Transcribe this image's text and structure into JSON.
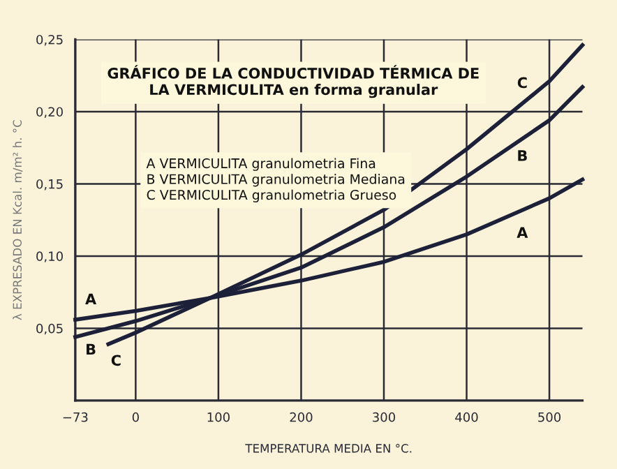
{
  "chart_data": {
    "type": "line",
    "title": "GRÁFICO DE LA CONDUCTIVIDAD TÉRMICA DE\nLA VERMICULITA en forma granular",
    "xlabel": "TEMPERATURA MEDIA EN °C.",
    "ylabel": "λ EXPRESADO EN Kcal. m/m² h. °C",
    "series": [
      {
        "name": "A",
        "color": "#1c2038",
        "x": [
          -73,
          0,
          90,
          200,
          300,
          400,
          500,
          540
        ],
        "values": [
          0.056,
          0.062,
          0.071,
          0.083,
          0.096,
          0.115,
          0.14,
          0.153
        ]
      },
      {
        "name": "B",
        "color": "#1c2038",
        "x": [
          -73,
          0,
          90,
          200,
          300,
          400,
          500,
          540
        ],
        "values": [
          0.044,
          0.055,
          0.071,
          0.092,
          0.12,
          0.155,
          0.194,
          0.217
        ]
      },
      {
        "name": "C",
        "color": "#1c2038",
        "x": [
          -33,
          0,
          90,
          200,
          300,
          400,
          500,
          540
        ],
        "values": [
          0.039,
          0.047,
          0.071,
          0.101,
          0.132,
          0.174,
          0.221,
          0.246
        ]
      }
    ],
    "annotations": [
      "A VERMICULITA granulometria Fina\nB VERMICULITA granulometria Mediana\nC VERMICULITA granulometria Grueso"
    ],
    "xlim": [
      -73,
      540
    ],
    "xticks": [
      {
        "value": -73,
        "label": "−73"
      },
      0,
      100,
      200,
      300,
      400,
      500
    ],
    "ylim": [
      0,
      0.25
    ],
    "yticks": [
      {
        "value": 0.05,
        "label": "0,05"
      },
      {
        "value": 0.1,
        "label": "0,10"
      },
      {
        "value": 0.15,
        "label": "0,15"
      },
      {
        "value": 0.2,
        "label": "0,20"
      },
      {
        "value": 0.25,
        "label": "0,25"
      }
    ],
    "grid": true,
    "marker": "none",
    "line_style": "solid"
  }
}
